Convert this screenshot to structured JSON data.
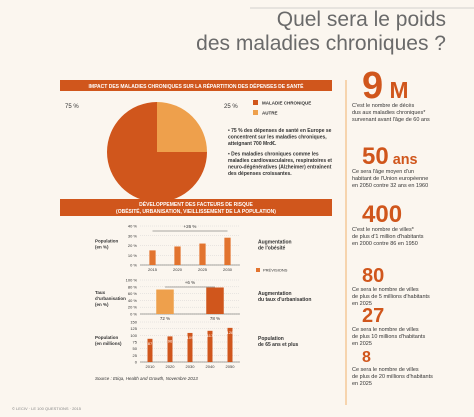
{
  "title": [
    "Quel sera le poids",
    "des maladies chroniques ?"
  ],
  "section1": {
    "banner": "IMPACT DES MALADIES CHRONIQUES SUR LA RÉPARTITION DES DÉPENSES DE SANTÉ",
    "bullets": [
      [
        "• 75 % des dépenses de santé en Europe se",
        "concentrent sur les maladies chroniques,",
        "atteignant 700 Mrd€."
      ],
      [
        "• Des maladies chroniques comme les",
        "maladies cardiovasculaires, respiratoires et",
        "neuro-dégénératives (Alzheimer) entraînent",
        "des dépenses croissantes."
      ]
    ]
  },
  "section2": {
    "banner": [
      "DÉVELOPPEMENT DES FACTEURS DE RISQUE",
      "(OBÉSITÉ, URBANISATION, VIEILLISSEMENT DE LA POPULATION)"
    ]
  },
  "chart_data": [
    {
      "type": "pie",
      "categories": [
        "MALADIE CHRONIQUE",
        "AUTRE"
      ],
      "values": [
        75,
        25
      ],
      "value_labels": [
        "75 %",
        "25 %"
      ],
      "colors": [
        "#d0561c",
        "#eea04c"
      ]
    },
    {
      "type": "bar",
      "y_label": [
        "Population",
        "(en %)"
      ],
      "categories": [
        "2015",
        "2020",
        "2025",
        "2030"
      ],
      "values": [
        15,
        19,
        22,
        28
      ],
      "color": "#e2742f",
      "ylim": [
        0,
        40
      ],
      "yticks": [
        {
          "value": 0,
          "label": "0 %"
        },
        {
          "value": 10,
          "label": "10 %"
        },
        {
          "value": 20,
          "label": "20 %"
        },
        {
          "value": 30,
          "label": "30 %"
        },
        {
          "value": 40,
          "label": "40 %"
        }
      ],
      "annotation": "+26 %",
      "side_label": [
        "Augmentation",
        "de l'obésité"
      ],
      "legend": "PRÉVISIONS"
    },
    {
      "type": "bar",
      "y_label": [
        "Taux",
        "d'urbanisation",
        "(en %)"
      ],
      "values": [
        72,
        78
      ],
      "value_labels": [
        "72 %",
        "78 %"
      ],
      "colors": [
        "#eea04c",
        "#d0561c"
      ],
      "ylim": [
        0,
        100
      ],
      "yticks": [
        {
          "value": 0,
          "label": "0 %"
        },
        {
          "value": 20,
          "label": "20 %"
        },
        {
          "value": 40,
          "label": "40 %"
        },
        {
          "value": 60,
          "label": "60 %"
        },
        {
          "value": 80,
          "label": "80 %"
        },
        {
          "value": 100,
          "label": "100 %"
        }
      ],
      "annotation": "+6 %",
      "side_label": [
        "Augmentation",
        "du taux d'urbanisation"
      ]
    },
    {
      "type": "bar",
      "y_label": [
        "Population",
        "(en millions)"
      ],
      "categories": [
        "2010",
        "2020",
        "2030",
        "2040",
        "2050"
      ],
      "values": [
        87,
        96,
        109,
        117,
        128
      ],
      "color": "#d0561c",
      "ylim": [
        0,
        150
      ],
      "yticks": [
        0,
        25,
        50,
        75,
        100,
        125,
        150
      ],
      "side_label": [
        "Population",
        "de 65 ans et plus"
      ]
    }
  ],
  "stats": [
    {
      "figure": "9",
      "unit": "M",
      "text": [
        "C'est le nombre de décès",
        "dus aux maladies chroniques*",
        "survenant avant l'âge de 60 ans"
      ]
    },
    {
      "figure": "50",
      "unit": "ans",
      "text": [
        "Ce sera l'âge moyen d'un",
        "habitant de l'Union européenne",
        "en 2050 contre 32 ans en 1960"
      ]
    },
    {
      "figure": "400",
      "unit": "",
      "text": [
        "C'est le nombre de villes*",
        "de plus d'1 million d'habitants",
        "en 2000 contre 86 en 1950"
      ]
    },
    {
      "figure": "80",
      "unit": "",
      "text": [
        "Ce sera le nombre de villes",
        "de plus de 5 millions d'habitants",
        "en 2025"
      ]
    },
    {
      "figure": "27",
      "unit": "",
      "text": [
        "Ce sera le nombre de villes",
        "de plus 10 millions d'habitants",
        "en 2025"
      ]
    },
    {
      "figure": "8",
      "unit": "",
      "text": [
        "Ce sera le nombre de villes",
        "de plus de 20 millions d'habitants",
        "en 2025"
      ]
    }
  ],
  "source": "Source : Etiqa, Health and Growth, Novembre 2013",
  "footer": "© LECIV · LE 100 QUESTIONS · 2015"
}
